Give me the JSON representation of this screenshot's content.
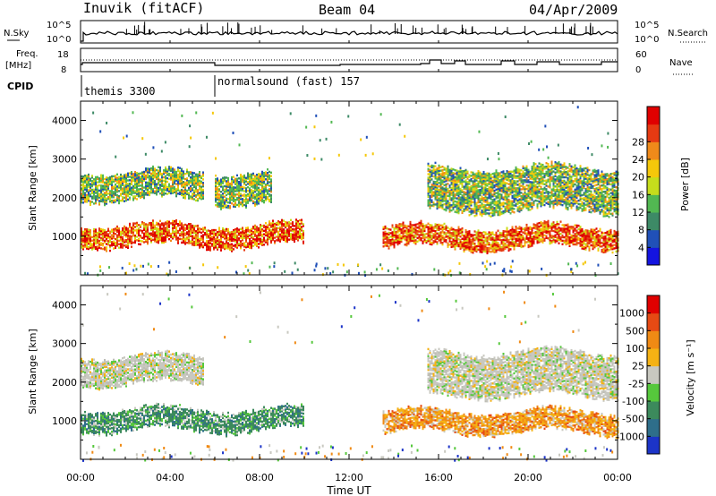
{
  "header": {
    "station": "Inuvik (fitACF)",
    "beam": "Beam 04",
    "date": "04/Apr/2009"
  },
  "panels": {
    "noise": {
      "left_label": "N.Sky",
      "right_label": "N.Search",
      "left_ticks": [
        "10^5",
        "10^0"
      ],
      "right_ticks": [
        "10^5",
        "10^0"
      ]
    },
    "freq": {
      "left_label_1": "Freq.",
      "left_label_2": "[MHz]",
      "right_label": "Nave",
      "left_ticks": [
        "18",
        "8"
      ],
      "right_ticks": [
        "60",
        "0"
      ]
    },
    "cpid": {
      "label": "CPID",
      "programs": [
        {
          "name": "themis 3300",
          "start_hour": 0
        },
        {
          "name": "normalsound (fast) 157",
          "start_hour": 6.0
        }
      ]
    }
  },
  "chart_data": [
    {
      "type": "heatmap",
      "name": "Power",
      "xlabel": "Time UT",
      "ylabel": "Slant Range [km]",
      "x_range_hours": [
        0,
        24
      ],
      "ylim_km": [
        0,
        4500
      ],
      "y_ticks": [
        "1000",
        "2000",
        "3000",
        "4000"
      ],
      "x_ticks": [
        "00:00",
        "04:00",
        "08:00",
        "12:00",
        "16:00",
        "20:00",
        "00:00"
      ],
      "colorbar": {
        "label": "Power [dB]",
        "ticks": [
          "4",
          "8",
          "12",
          "16",
          "20",
          "24",
          "28"
        ],
        "colors": [
          "#1414e0",
          "#2050b8",
          "#3d8a66",
          "#52b852",
          "#c6dd1c",
          "#f5c80a",
          "#f08a1a",
          "#e63a12",
          "#e00000"
        ]
      },
      "echo_bands": [
        {
          "from_hour": 0,
          "to_hour": 10.0,
          "range_km": [
            800,
            1300
          ],
          "level": "high"
        },
        {
          "from_hour": 0,
          "to_hour": 5.5,
          "range_km": [
            2000,
            2700
          ],
          "level": "medium"
        },
        {
          "from_hour": 6,
          "to_hour": 8.5,
          "range_km": [
            1900,
            2700
          ],
          "level": "medium"
        },
        {
          "from_hour": 13.5,
          "to_hour": 24,
          "range_km": [
            750,
            1250
          ],
          "level": "high"
        },
        {
          "from_hour": 15.5,
          "to_hour": 24,
          "range_km": [
            1700,
            2800
          ],
          "level": "medium"
        }
      ]
    },
    {
      "type": "heatmap",
      "name": "Velocity",
      "xlabel": "Time UT",
      "ylabel": "Slant Range [km]",
      "x_range_hours": [
        0,
        24
      ],
      "ylim_km": [
        0,
        4500
      ],
      "y_ticks": [
        "1000",
        "2000",
        "3000",
        "4000"
      ],
      "x_ticks": [
        "00:00",
        "04:00",
        "08:00",
        "12:00",
        "16:00",
        "20:00",
        "00:00"
      ],
      "colorbar": {
        "label": "Velocity [m s⁻¹]",
        "ticks": [
          "1000",
          "500",
          "100",
          "25",
          "-25",
          "-100",
          "-500",
          "-1000"
        ],
        "colors": [
          "#1c34c8",
          "#2e6e8a",
          "#3c8a5c",
          "#56c83c",
          "#c8c8c0",
          "#f5b214",
          "#f08a14",
          "#e64a14",
          "#e00000"
        ]
      },
      "echo_bands": [
        {
          "from_hour": 0,
          "to_hour": 10.0,
          "range_km": [
            800,
            1300
          ],
          "class": "toward (green)"
        },
        {
          "from_hour": 0,
          "to_hour": 5.5,
          "range_km": [
            2000,
            2700
          ],
          "class": "ground scatter (grey)"
        },
        {
          "from_hour": 13.5,
          "to_hour": 24,
          "range_km": [
            750,
            1250
          ],
          "class": "away (orange)"
        },
        {
          "from_hour": 15.5,
          "to_hour": 24,
          "range_km": [
            1700,
            2800
          ],
          "class": "ground scatter (grey)"
        }
      ]
    }
  ]
}
